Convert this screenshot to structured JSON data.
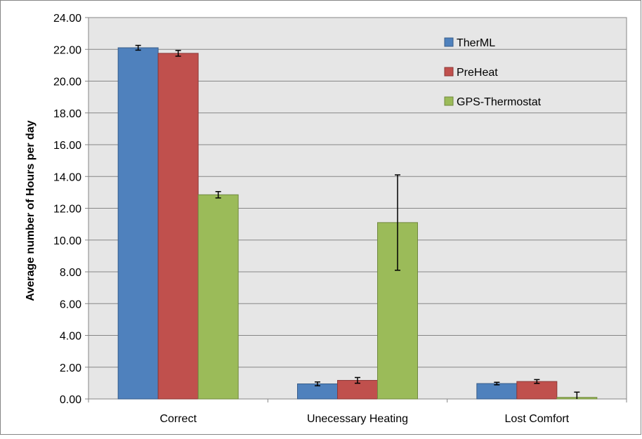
{
  "chart_data": {
    "type": "bar",
    "title": "",
    "xlabel": "",
    "ylabel": "Average number of Hours per day",
    "ylim": [
      0,
      24
    ],
    "ytick_step": 2,
    "ytick_labels": [
      "0.00",
      "2.00",
      "4.00",
      "6.00",
      "8.00",
      "10.00",
      "12.00",
      "14.00",
      "16.00",
      "18.00",
      "20.00",
      "22.00",
      "24.00"
    ],
    "grid": true,
    "legend_position": "top-right",
    "categories": [
      "Correct",
      "Unecessary Heating",
      "Lost Comfort"
    ],
    "series": [
      {
        "name": "TherML",
        "color": "#4f81bd",
        "border": "#385d8a",
        "values": [
          22.1,
          0.95,
          0.97
        ],
        "errors": [
          0.15,
          0.12,
          0.08
        ]
      },
      {
        "name": "PreHeat",
        "color": "#c0504d",
        "border": "#8c3836",
        "values": [
          21.75,
          1.17,
          1.1
        ],
        "errors": [
          0.18,
          0.18,
          0.12
        ]
      },
      {
        "name": "GPS-Thermostat",
        "color": "#9bbb59",
        "border": "#71893f",
        "values": [
          12.85,
          11.1,
          0.1
        ],
        "errors": [
          0.2,
          3.0,
          0.33
        ]
      }
    ]
  }
}
